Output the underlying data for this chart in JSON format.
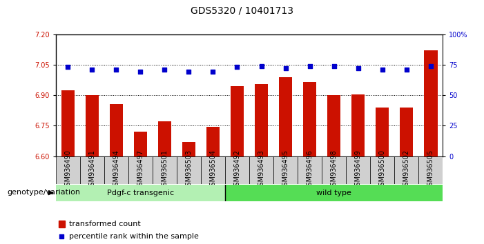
{
  "title": "GDS5320 / 10401713",
  "samples": [
    "GSM936490",
    "GSM936491",
    "GSM936494",
    "GSM936497",
    "GSM936501",
    "GSM936503",
    "GSM936504",
    "GSM936492",
    "GSM936493",
    "GSM936495",
    "GSM936496",
    "GSM936498",
    "GSM936499",
    "GSM936500",
    "GSM936502",
    "GSM936505"
  ],
  "bar_values": [
    6.925,
    6.9,
    6.855,
    6.72,
    6.77,
    6.67,
    6.745,
    6.945,
    6.955,
    6.99,
    6.965,
    6.9,
    6.905,
    6.84,
    6.84,
    7.12
  ],
  "dot_right_values": [
    73,
    71,
    71,
    69,
    71,
    69,
    69,
    73,
    74,
    72,
    74,
    74,
    72,
    71,
    71,
    74
  ],
  "ylim_left": [
    6.6,
    7.2
  ],
  "ylim_right": [
    0,
    100
  ],
  "yticks_left": [
    6.6,
    6.75,
    6.9,
    7.05,
    7.2
  ],
  "yticks_right": [
    0,
    25,
    50,
    75,
    100
  ],
  "bar_color": "#cc1100",
  "dot_color": "#0000cc",
  "background_color": "#ffffff",
  "plot_bg_color": "#ffffff",
  "group1_label": "Pdgf-c transgenic",
  "group2_label": "wild type",
  "group1_color": "#b3f0b3",
  "group2_color": "#55dd55",
  "group1_count": 7,
  "group2_count": 9,
  "genotype_label": "genotype/variation",
  "legend_bar_label": "transformed count",
  "legend_dot_label": "percentile rank within the sample",
  "title_fontsize": 10,
  "tick_fontsize": 7,
  "label_fontsize": 8
}
